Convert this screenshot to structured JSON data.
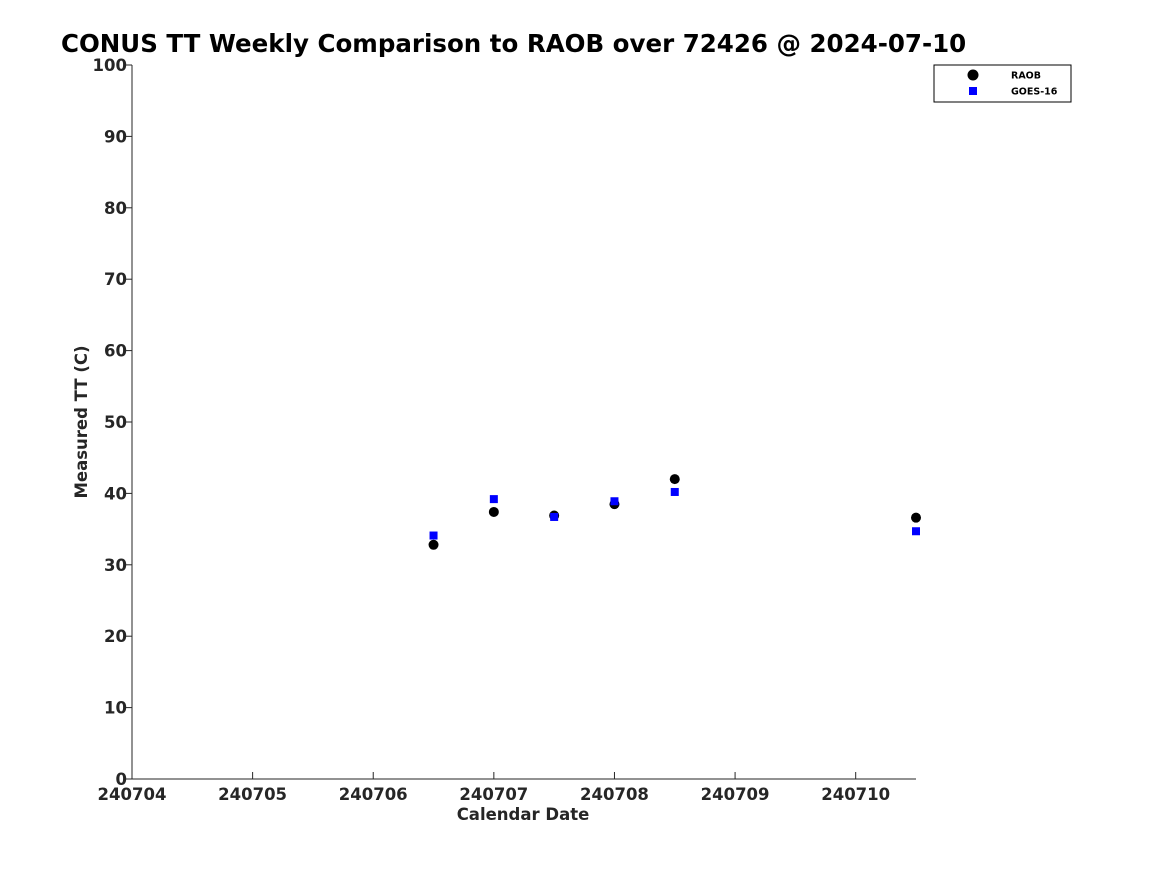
{
  "chart_data": {
    "type": "scatter",
    "title": "CONUS TT Weekly Comparison to RAOB over 72426 @ 2024-07-10",
    "xlabel": "Calendar Date",
    "ylabel": "Measured TT (C)",
    "x_ticks": [
      "240704",
      "240705",
      "240706",
      "240707",
      "240708",
      "240709",
      "240710"
    ],
    "y_ticks": [
      "0",
      "10",
      "20",
      "30",
      "40",
      "50",
      "60",
      "70",
      "80",
      "90",
      "100"
    ],
    "xlim": [
      "2024-07-04",
      "2024-07-10 12:00"
    ],
    "ylim": [
      0,
      100
    ],
    "grid": false,
    "legend_position": "top-right",
    "series": [
      {
        "name": "RAOB",
        "marker": "circle",
        "color": "#000000",
        "points": [
          {
            "x": "2024-07-06 12:00",
            "y": 32.8
          },
          {
            "x": "2024-07-07 00:00",
            "y": 37.4
          },
          {
            "x": "2024-07-07 12:00",
            "y": 36.9
          },
          {
            "x": "2024-07-08 00:00",
            "y": 38.5
          },
          {
            "x": "2024-07-08 12:00",
            "y": 42.0
          },
          {
            "x": "2024-07-10 12:00",
            "y": 36.6
          }
        ]
      },
      {
        "name": "GOES-16",
        "marker": "square",
        "color": "#0000ff",
        "points": [
          {
            "x": "2024-07-06 12:00",
            "y": 34.1
          },
          {
            "x": "2024-07-07 00:00",
            "y": 39.2
          },
          {
            "x": "2024-07-07 12:00",
            "y": 36.7
          },
          {
            "x": "2024-07-08 00:00",
            "y": 38.9
          },
          {
            "x": "2024-07-08 12:00",
            "y": 40.2
          },
          {
            "x": "2024-07-10 12:00",
            "y": 34.7
          }
        ]
      }
    ]
  }
}
